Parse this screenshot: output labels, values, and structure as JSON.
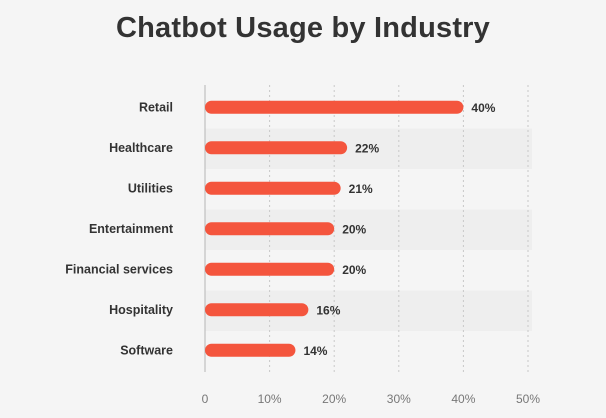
{
  "title": "Chatbot Usage by Industry",
  "accent_color": "#f4553d",
  "chart_data": {
    "type": "bar",
    "orientation": "horizontal",
    "title": "Chatbot Usage by Industry",
    "categories": [
      "Retail",
      "Healthcare",
      "Utilities",
      "Entertainment",
      "Financial services",
      "Hospitality",
      "Software"
    ],
    "values": [
      40,
      22,
      21,
      20,
      20,
      16,
      14
    ],
    "value_labels": [
      "40%",
      "22%",
      "21%",
      "20%",
      "20%",
      "16%",
      "14%"
    ],
    "xlim": [
      0,
      50
    ],
    "x_ticks": [
      0,
      10,
      20,
      30,
      40,
      50
    ],
    "x_tick_labels": [
      "0",
      "10%",
      "20%",
      "30%",
      "40%",
      "50%"
    ],
    "xlabel": "",
    "ylabel": "",
    "grid": "vertical dashed",
    "bar_color": "#f4553d"
  }
}
